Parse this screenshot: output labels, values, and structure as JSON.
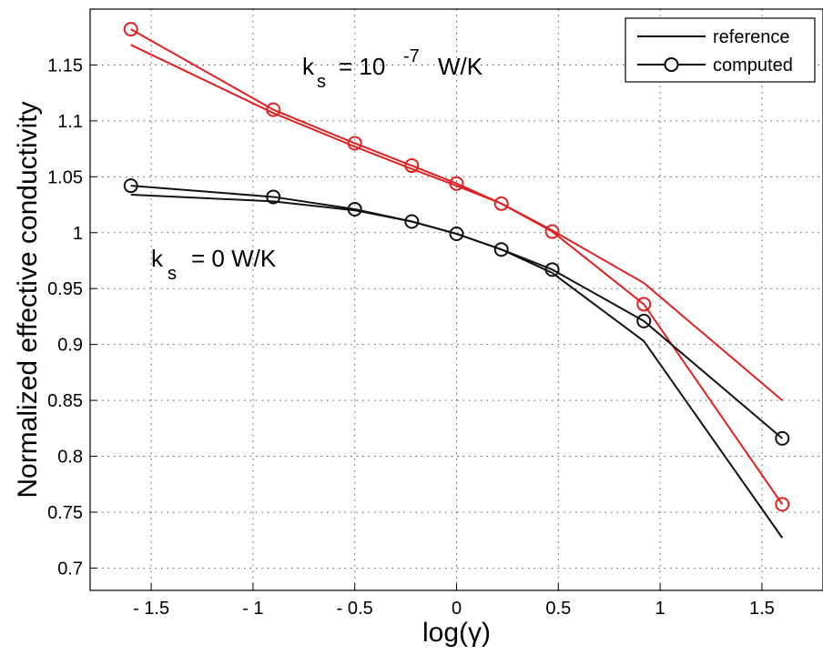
{
  "chart_data": {
    "type": "line",
    "xlabel": "log(γ)",
    "ylabel": "Normalized effective conductivity",
    "xlim": [
      -1.8,
      1.8
    ],
    "ylim": [
      0.68,
      1.2
    ],
    "xticks": [
      -1.5,
      -1,
      -0.5,
      0,
      0.5,
      1,
      1.5
    ],
    "xtick_labels": [
      "- 1.5",
      "- 1",
      "- 0.5",
      "0",
      "0.5",
      "1",
      "1.5"
    ],
    "yticks": [
      0.7,
      0.75,
      0.8,
      0.85,
      0.9,
      0.95,
      1,
      1.05,
      1.1,
      1.15
    ],
    "ytick_labels": [
      "0.7",
      "0.75",
      "0.8",
      "0.85",
      "0.9",
      "0.95",
      "1",
      "1.05",
      "1.1",
      "1.15"
    ],
    "grid": "dotted",
    "legend": {
      "placement": "top-right",
      "entries": [
        {
          "label": "reference",
          "marker": "none",
          "color": "#000000"
        },
        {
          "label": "computed",
          "marker": "circle",
          "color": "#000000"
        }
      ]
    },
    "annotations": [
      {
        "id": "red_label",
        "k": "k",
        "sub": "s",
        "text": "= 10",
        "sup": "-7",
        "unit": "W/K"
      },
      {
        "id": "black_label",
        "k": "k",
        "sub": "s",
        "text": "=  0 W/K"
      }
    ],
    "series": [
      {
        "style": "reference",
        "color": "#e02020",
        "x": [
          -1.6,
          -0.9,
          -0.5,
          -0.22,
          0,
          0.22,
          0.47,
          0.92,
          1.6
        ],
        "y": [
          1.168,
          1.107,
          1.077,
          1.057,
          1.042,
          1.026,
          1.002,
          0.955,
          0.85
        ]
      },
      {
        "style": "computed",
        "color": "#e02020",
        "x": [
          -1.6,
          -0.9,
          -0.5,
          -0.22,
          0,
          0.22,
          0.47,
          0.92,
          1.6
        ],
        "y": [
          1.182,
          1.11,
          1.08,
          1.06,
          1.044,
          1.026,
          1.001,
          0.936,
          0.757
        ]
      },
      {
        "style": "reference",
        "color": "#111111",
        "x": [
          -1.6,
          -0.9,
          -0.5,
          -0.22,
          0,
          0.22,
          0.47,
          0.92,
          1.6
        ],
        "y": [
          1.034,
          1.028,
          1.02,
          1.01,
          0.999,
          0.985,
          0.964,
          0.903,
          0.727
        ]
      },
      {
        "style": "computed",
        "color": "#111111",
        "x": [
          -1.6,
          -0.9,
          -0.5,
          -0.22,
          0,
          0.22,
          0.47,
          0.92,
          1.6
        ],
        "y": [
          1.042,
          1.032,
          1.021,
          1.01,
          0.999,
          0.985,
          0.967,
          0.921,
          0.816
        ]
      }
    ]
  }
}
